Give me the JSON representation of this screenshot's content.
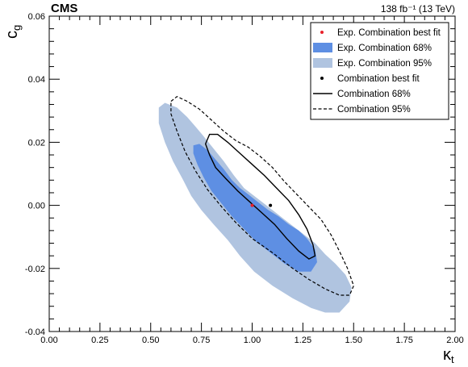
{
  "chart_data": {
    "type": "contour",
    "experiment": "CMS",
    "luminosity_label": "138 fb⁻¹ (13 TeV)",
    "xlabel": "κt",
    "ylabel": "cg",
    "xlim": [
      0.0,
      2.0
    ],
    "ylim": [
      -0.04,
      0.06
    ],
    "x_ticks": [
      0.0,
      0.25,
      0.5,
      0.75,
      1.0,
      1.25,
      1.5,
      1.75,
      2.0
    ],
    "x_tick_labels": [
      "0.00",
      "0.25",
      "0.50",
      "0.75",
      "1.00",
      "1.25",
      "1.50",
      "1.75",
      "2.00"
    ],
    "y_ticks": [
      -0.04,
      -0.02,
      0.0,
      0.02,
      0.04,
      0.06
    ],
    "y_tick_labels": [
      "-0.04",
      "-0.02",
      "0.00",
      "0.02",
      "0.04",
      "0.06"
    ],
    "legend_position": "top-right",
    "colors": {
      "exp_best_fit": "#e8202a",
      "exp_68": "#5e8fe3",
      "exp_95": "#b0c4e0",
      "obs": "#000000"
    },
    "series": [
      {
        "name": "Exp. Combination 95%",
        "kind": "filled",
        "points": [
          [
            0.54,
            0.031
          ],
          [
            0.57,
            0.0325
          ],
          [
            0.63,
            0.031
          ],
          [
            0.68,
            0.028
          ],
          [
            0.72,
            0.025
          ],
          [
            0.76,
            0.022
          ],
          [
            0.81,
            0.018
          ],
          [
            0.86,
            0.014
          ],
          [
            0.91,
            0.0095
          ],
          [
            0.96,
            0.0055
          ],
          [
            1.01,
            0.003
          ],
          [
            1.06,
            0.0005
          ],
          [
            1.11,
            -0.002
          ],
          [
            1.16,
            -0.0045
          ],
          [
            1.21,
            -0.007
          ],
          [
            1.26,
            -0.0095
          ],
          [
            1.31,
            -0.012
          ],
          [
            1.36,
            -0.0155
          ],
          [
            1.41,
            -0.0185
          ],
          [
            1.46,
            -0.022
          ],
          [
            1.49,
            -0.026
          ],
          [
            1.48,
            -0.0305
          ],
          [
            1.43,
            -0.034
          ],
          [
            1.36,
            -0.034
          ],
          [
            1.29,
            -0.0325
          ],
          [
            1.2,
            -0.0295
          ],
          [
            1.1,
            -0.0255
          ],
          [
            1.01,
            -0.021
          ],
          [
            0.94,
            -0.016
          ],
          [
            0.88,
            -0.011
          ],
          [
            0.81,
            -0.006
          ],
          [
            0.75,
            -0.0015
          ],
          [
            0.7,
            0.003
          ],
          [
            0.66,
            0.008
          ],
          [
            0.61,
            0.014
          ],
          [
            0.57,
            0.02
          ],
          [
            0.54,
            0.026
          ]
        ]
      },
      {
        "name": "Exp. Combination 68%",
        "kind": "filled",
        "points": [
          [
            0.71,
            0.019
          ],
          [
            0.74,
            0.0195
          ],
          [
            0.78,
            0.0175
          ],
          [
            0.82,
            0.0145
          ],
          [
            0.86,
            0.0115
          ],
          [
            0.9,
            0.008
          ],
          [
            0.94,
            0.0055
          ],
          [
            0.98,
            0.0035
          ],
          [
            1.03,
            0.001
          ],
          [
            1.08,
            -0.0015
          ],
          [
            1.13,
            -0.0035
          ],
          [
            1.18,
            -0.006
          ],
          [
            1.23,
            -0.008
          ],
          [
            1.27,
            -0.0105
          ],
          [
            1.31,
            -0.014
          ],
          [
            1.32,
            -0.018
          ],
          [
            1.29,
            -0.021
          ],
          [
            1.23,
            -0.021
          ],
          [
            1.16,
            -0.0185
          ],
          [
            1.09,
            -0.015
          ],
          [
            1.02,
            -0.0115
          ],
          [
            0.96,
            -0.0075
          ],
          [
            0.9,
            -0.0035
          ],
          [
            0.85,
            0.0005
          ],
          [
            0.8,
            0.0045
          ],
          [
            0.76,
            0.009
          ],
          [
            0.73,
            0.013
          ],
          [
            0.71,
            0.0165
          ]
        ]
      },
      {
        "name": "Exp. Combination best fit",
        "kind": "point",
        "x": 1.0,
        "y": 0.0
      },
      {
        "name": "Combination 95%",
        "kind": "dashed",
        "points": [
          [
            0.6,
            0.033
          ],
          [
            0.63,
            0.0345
          ],
          [
            0.68,
            0.033
          ],
          [
            0.74,
            0.0305
          ],
          [
            0.8,
            0.027
          ],
          [
            0.86,
            0.0235
          ],
          [
            0.92,
            0.0205
          ],
          [
            0.98,
            0.0185
          ],
          [
            1.04,
            0.0155
          ],
          [
            1.1,
            0.012
          ],
          [
            1.16,
            0.0075
          ],
          [
            1.22,
            0.0035
          ],
          [
            1.28,
            -0.0005
          ],
          [
            1.34,
            -0.0045
          ],
          [
            1.39,
            -0.0095
          ],
          [
            1.43,
            -0.0145
          ],
          [
            1.47,
            -0.02
          ],
          [
            1.5,
            -0.0255
          ],
          [
            1.48,
            -0.0285
          ],
          [
            1.43,
            -0.0285
          ],
          [
            1.36,
            -0.0265
          ],
          [
            1.28,
            -0.0235
          ],
          [
            1.2,
            -0.02
          ],
          [
            1.1,
            -0.015
          ],
          [
            1.0,
            -0.0105
          ],
          [
            0.92,
            -0.0055
          ],
          [
            0.85,
            -0.0005
          ],
          [
            0.78,
            0.005
          ],
          [
            0.72,
            0.011
          ],
          [
            0.67,
            0.017
          ],
          [
            0.63,
            0.0235
          ],
          [
            0.6,
            0.029
          ]
        ]
      },
      {
        "name": "Combination 68%",
        "kind": "solid",
        "points": [
          [
            0.77,
            0.0195
          ],
          [
            0.79,
            0.0225
          ],
          [
            0.83,
            0.0225
          ],
          [
            0.88,
            0.02
          ],
          [
            0.94,
            0.0165
          ],
          [
            1.0,
            0.013
          ],
          [
            1.06,
            0.0095
          ],
          [
            1.12,
            0.0055
          ],
          [
            1.18,
            0.0015
          ],
          [
            1.23,
            -0.003
          ],
          [
            1.27,
            -0.0075
          ],
          [
            1.3,
            -0.0125
          ],
          [
            1.31,
            -0.016
          ],
          [
            1.28,
            -0.017
          ],
          [
            1.23,
            -0.0145
          ],
          [
            1.17,
            -0.0105
          ],
          [
            1.11,
            -0.006
          ],
          [
            1.05,
            -0.0025
          ],
          [
            0.99,
            0.001
          ],
          [
            0.93,
            0.0045
          ],
          [
            0.87,
            0.0085
          ],
          [
            0.82,
            0.012
          ],
          [
            0.79,
            0.016
          ]
        ]
      },
      {
        "name": "Combination best fit",
        "kind": "point",
        "x": 1.09,
        "y": 0.0
      }
    ],
    "legend": [
      {
        "label": "Exp. Combination best fit",
        "symbol": "dot",
        "color": "#e8202a"
      },
      {
        "label": "Exp. Combination 68%",
        "symbol": "box",
        "color": "#5e8fe3"
      },
      {
        "label": "Exp. Combination 95%",
        "symbol": "box",
        "color": "#b0c4e0"
      },
      {
        "label": "Combination best fit",
        "symbol": "dot",
        "color": "#000000"
      },
      {
        "label": "Combination 68%",
        "symbol": "solid",
        "color": "#000000"
      },
      {
        "label": "Combination 95%",
        "symbol": "dashed",
        "color": "#000000"
      }
    ]
  }
}
